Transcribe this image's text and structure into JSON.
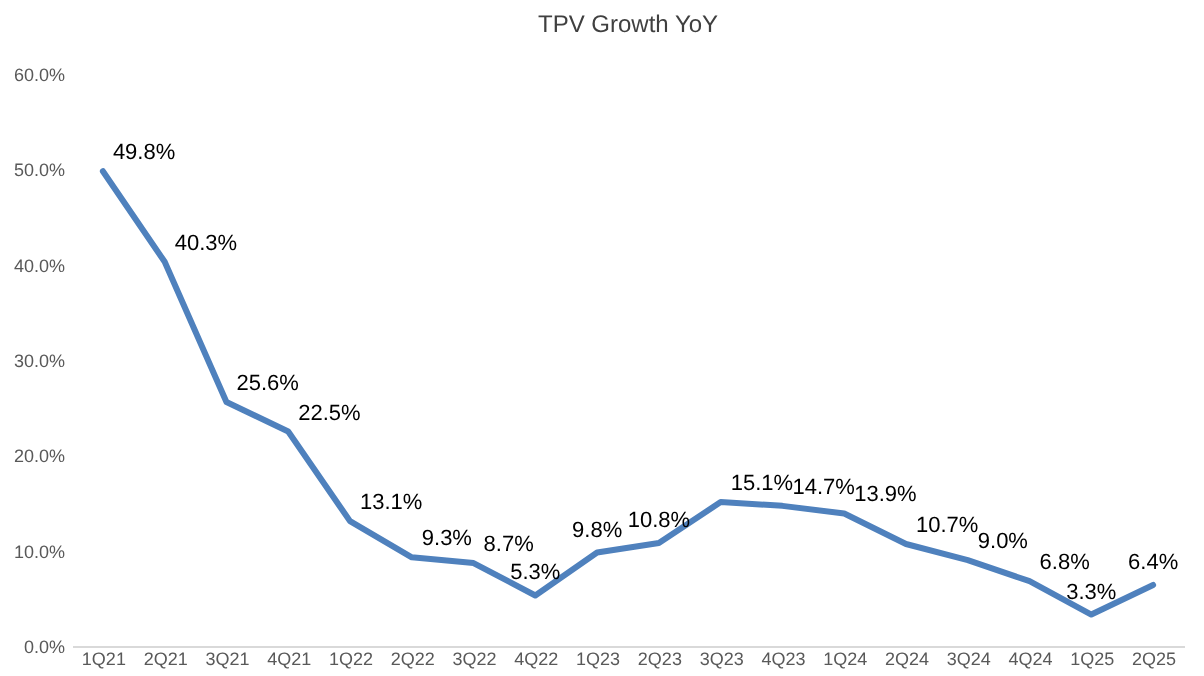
{
  "chart_data": {
    "type": "line",
    "title": "TPV Growth YoY",
    "categories": [
      "1Q21",
      "2Q21",
      "3Q21",
      "4Q21",
      "1Q22",
      "2Q22",
      "3Q22",
      "4Q22",
      "1Q23",
      "2Q23",
      "3Q23",
      "4Q23",
      "1Q24",
      "2Q24",
      "3Q24",
      "4Q24",
      "1Q25",
      "2Q25"
    ],
    "series": [
      {
        "color": "#4f81bd",
        "values": [
          49.8,
          40.3,
          25.6,
          22.5,
          13.1,
          9.3,
          8.7,
          5.3,
          9.8,
          10.8,
          15.1,
          14.7,
          13.9,
          10.7,
          9.0,
          6.8,
          3.3,
          6.4
        ]
      }
    ],
    "value_labels": [
      "49.8%",
      "40.3%",
      "25.6%",
      "22.5%",
      "13.1%",
      "9.3%",
      "8.7%",
      "5.3%",
      "9.8%",
      "10.8%",
      "15.1%",
      "14.7%",
      "13.9%",
      "10.7%",
      "9.0%",
      "6.8%",
      "3.3%",
      "6.4%"
    ],
    "ylim": [
      0,
      60
    ],
    "yticks": [
      {
        "value": 0,
        "label": "0.0%"
      },
      {
        "value": 10,
        "label": "10.0%"
      },
      {
        "value": 20,
        "label": "20.0%"
      },
      {
        "value": 30,
        "label": "30.0%"
      },
      {
        "value": 40,
        "label": "40.0%"
      },
      {
        "value": 50,
        "label": "50.0%"
      },
      {
        "value": 60,
        "label": "60.0%"
      }
    ],
    "grid": false,
    "legend": false,
    "marker": "none",
    "line_style": "solid"
  }
}
